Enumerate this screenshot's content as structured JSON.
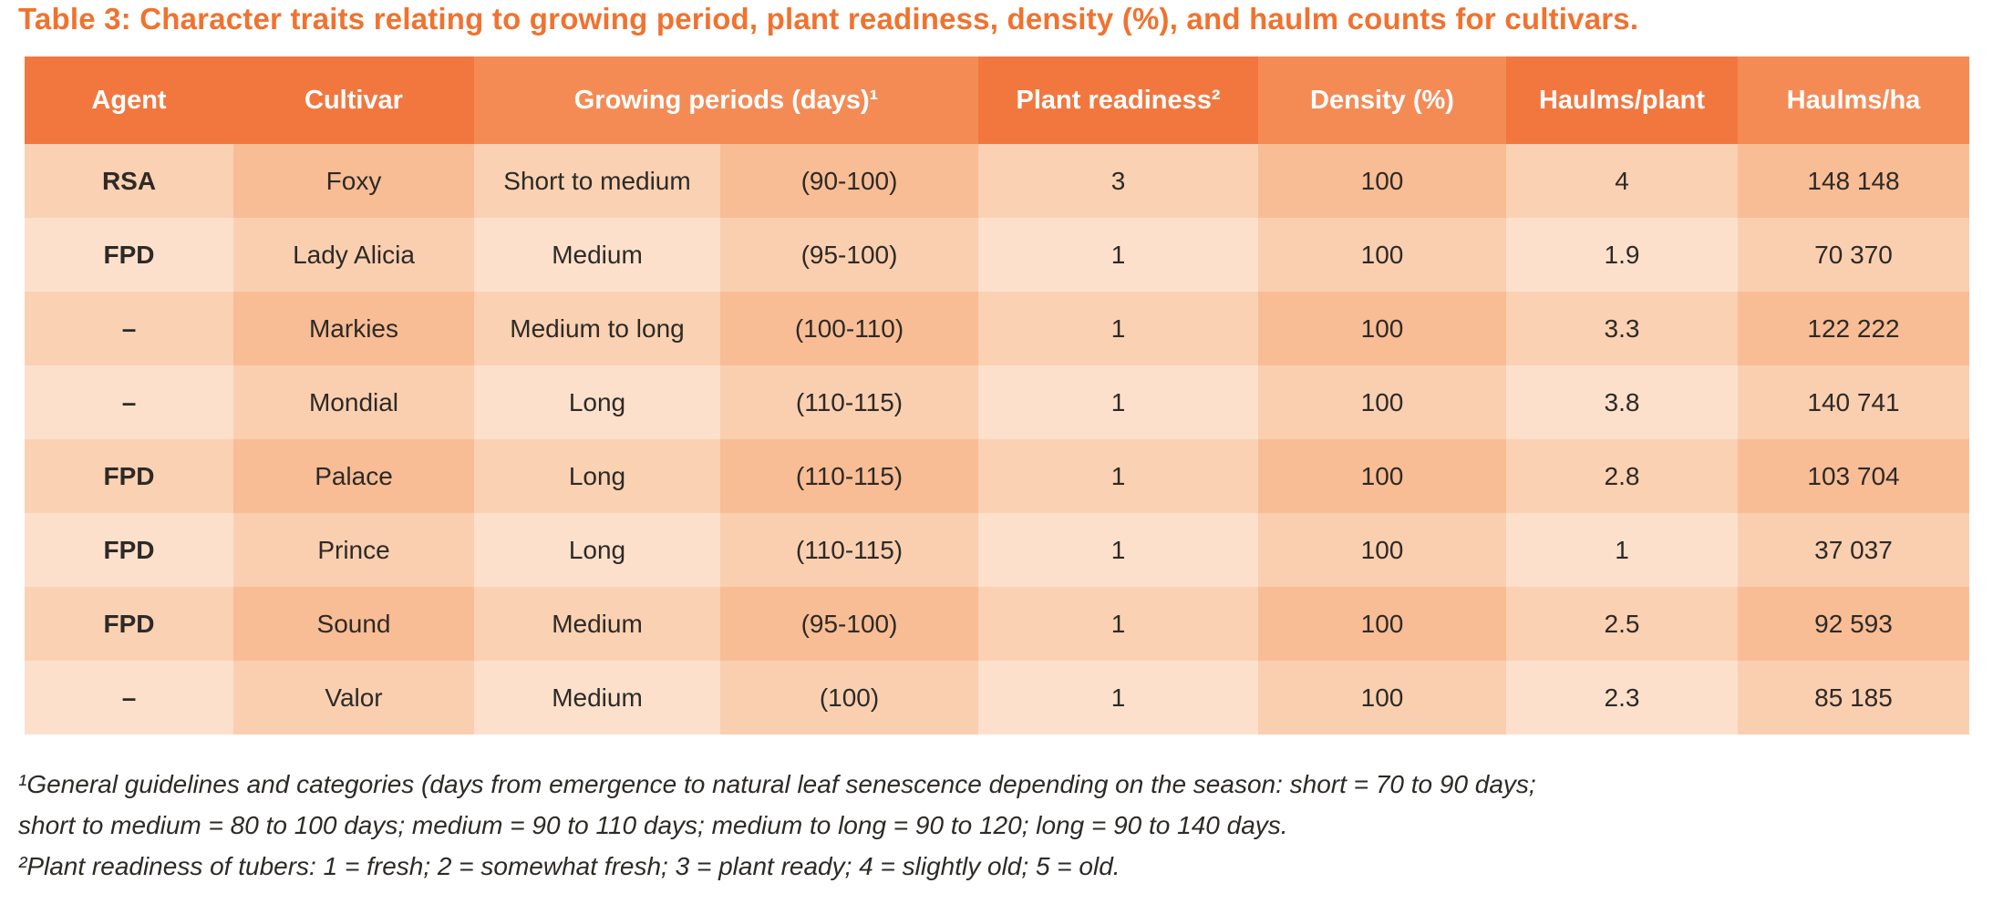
{
  "title": "Table 3: Character traits relating to growing period, plant readiness, density (%), and haulm counts for cultivars.",
  "colors": {
    "title": "#F1722F",
    "header_dark": "#F2773F",
    "header_light": "#F48B55",
    "header_text": "#FFFFFF",
    "row_odd_light": "#FAD1B2",
    "row_odd_dark": "#F8BD95",
    "row_even_light": "#FCE0CC",
    "row_even_dark": "#FACFB0",
    "body_text": "#2D2A26"
  },
  "table": {
    "header": {
      "agent": "Agent",
      "cultivar": "Cultivar",
      "growing_periods": "Growing periods (days)¹",
      "plant_readiness": "Plant readiness²",
      "density": "Density (%)",
      "haulms_plant": "Haulms/plant",
      "haulms_ha": "Haulms/ha"
    },
    "rows": [
      {
        "agent": "RSA",
        "cultivar": "Foxy",
        "growing_period_text": "Short to medium",
        "growing_period_range": "(90-100)",
        "plant_readiness": "3",
        "density": "100",
        "haulms_per_plant": "4",
        "haulms_per_ha": "148 148"
      },
      {
        "agent": "FPD",
        "cultivar": "Lady Alicia",
        "growing_period_text": "Medium",
        "growing_period_range": "(95-100)",
        "plant_readiness": "1",
        "density": "100",
        "haulms_per_plant": "1.9",
        "haulms_per_ha": "70 370"
      },
      {
        "agent": "–",
        "cultivar": "Markies",
        "growing_period_text": "Medium to long",
        "growing_period_range": "(100-110)",
        "plant_readiness": "1",
        "density": "100",
        "haulms_per_plant": "3.3",
        "haulms_per_ha": "122 222"
      },
      {
        "agent": "–",
        "cultivar": "Mondial",
        "growing_period_text": "Long",
        "growing_period_range": "(110-115)",
        "plant_readiness": "1",
        "density": "100",
        "haulms_per_plant": "3.8",
        "haulms_per_ha": "140 741"
      },
      {
        "agent": "FPD",
        "cultivar": "Palace",
        "growing_period_text": "Long",
        "growing_period_range": "(110-115)",
        "plant_readiness": "1",
        "density": "100",
        "haulms_per_plant": "2.8",
        "haulms_per_ha": "103 704"
      },
      {
        "agent": "FPD",
        "cultivar": "Prince",
        "growing_period_text": "Long",
        "growing_period_range": "(110-115)",
        "plant_readiness": "1",
        "density": "100",
        "haulms_per_plant": "1",
        "haulms_per_ha": "37 037"
      },
      {
        "agent": "FPD",
        "cultivar": "Sound",
        "growing_period_text": "Medium",
        "growing_period_range": "(95-100)",
        "plant_readiness": "1",
        "density": "100",
        "haulms_per_plant": "2.5",
        "haulms_per_ha": "92 593"
      },
      {
        "agent": "–",
        "cultivar": "Valor",
        "growing_period_text": "Medium",
        "growing_period_range": "(100)",
        "plant_readiness": "1",
        "density": "100",
        "haulms_per_plant": "2.3",
        "haulms_per_ha": "85 185"
      }
    ]
  },
  "footnotes": [
    "¹General guidelines and categories (days from emergence to natural leaf senescence depending on the season: short = 70 to 90 days;",
    "short to medium = 80 to 100 days; medium = 90 to 110 days; medium to long = 90 to 120; long = 90 to 140 days.",
    "²Plant readiness of tubers: 1 = fresh; 2 = somewhat fresh; 3 = plant ready; 4 = slightly old; 5 = old."
  ]
}
